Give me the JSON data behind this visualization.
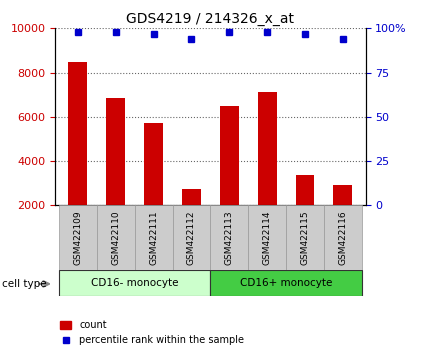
{
  "title": "GDS4219 / 214326_x_at",
  "samples": [
    "GSM422109",
    "GSM422110",
    "GSM422111",
    "GSM422112",
    "GSM422113",
    "GSM422114",
    "GSM422115",
    "GSM422116"
  ],
  "counts": [
    8500,
    6850,
    5700,
    2750,
    6500,
    7100,
    3350,
    2900
  ],
  "percentile_ranks": [
    98,
    98,
    97,
    94,
    98,
    98,
    97,
    94
  ],
  "bar_color": "#cc0000",
  "dot_color": "#0000cc",
  "ylim_left": [
    2000,
    10000
  ],
  "ylim_right": [
    0,
    100
  ],
  "yticks_left": [
    2000,
    4000,
    6000,
    8000,
    10000
  ],
  "yticks_right": [
    0,
    25,
    50,
    75,
    100
  ],
  "groups": [
    {
      "label": "CD16- monocyte",
      "indices": [
        0,
        1,
        2,
        3
      ],
      "color": "#ccffcc"
    },
    {
      "label": "CD16+ monocyte",
      "indices": [
        4,
        5,
        6,
        7
      ],
      "color": "#44cc44"
    }
  ],
  "group_label": "cell type",
  "legend_count_label": "count",
  "legend_percentile_label": "percentile rank within the sample",
  "bg_color": "#ffffff",
  "tick_label_area_color": "#cccccc",
  "tick_label_area_border": "#999999"
}
